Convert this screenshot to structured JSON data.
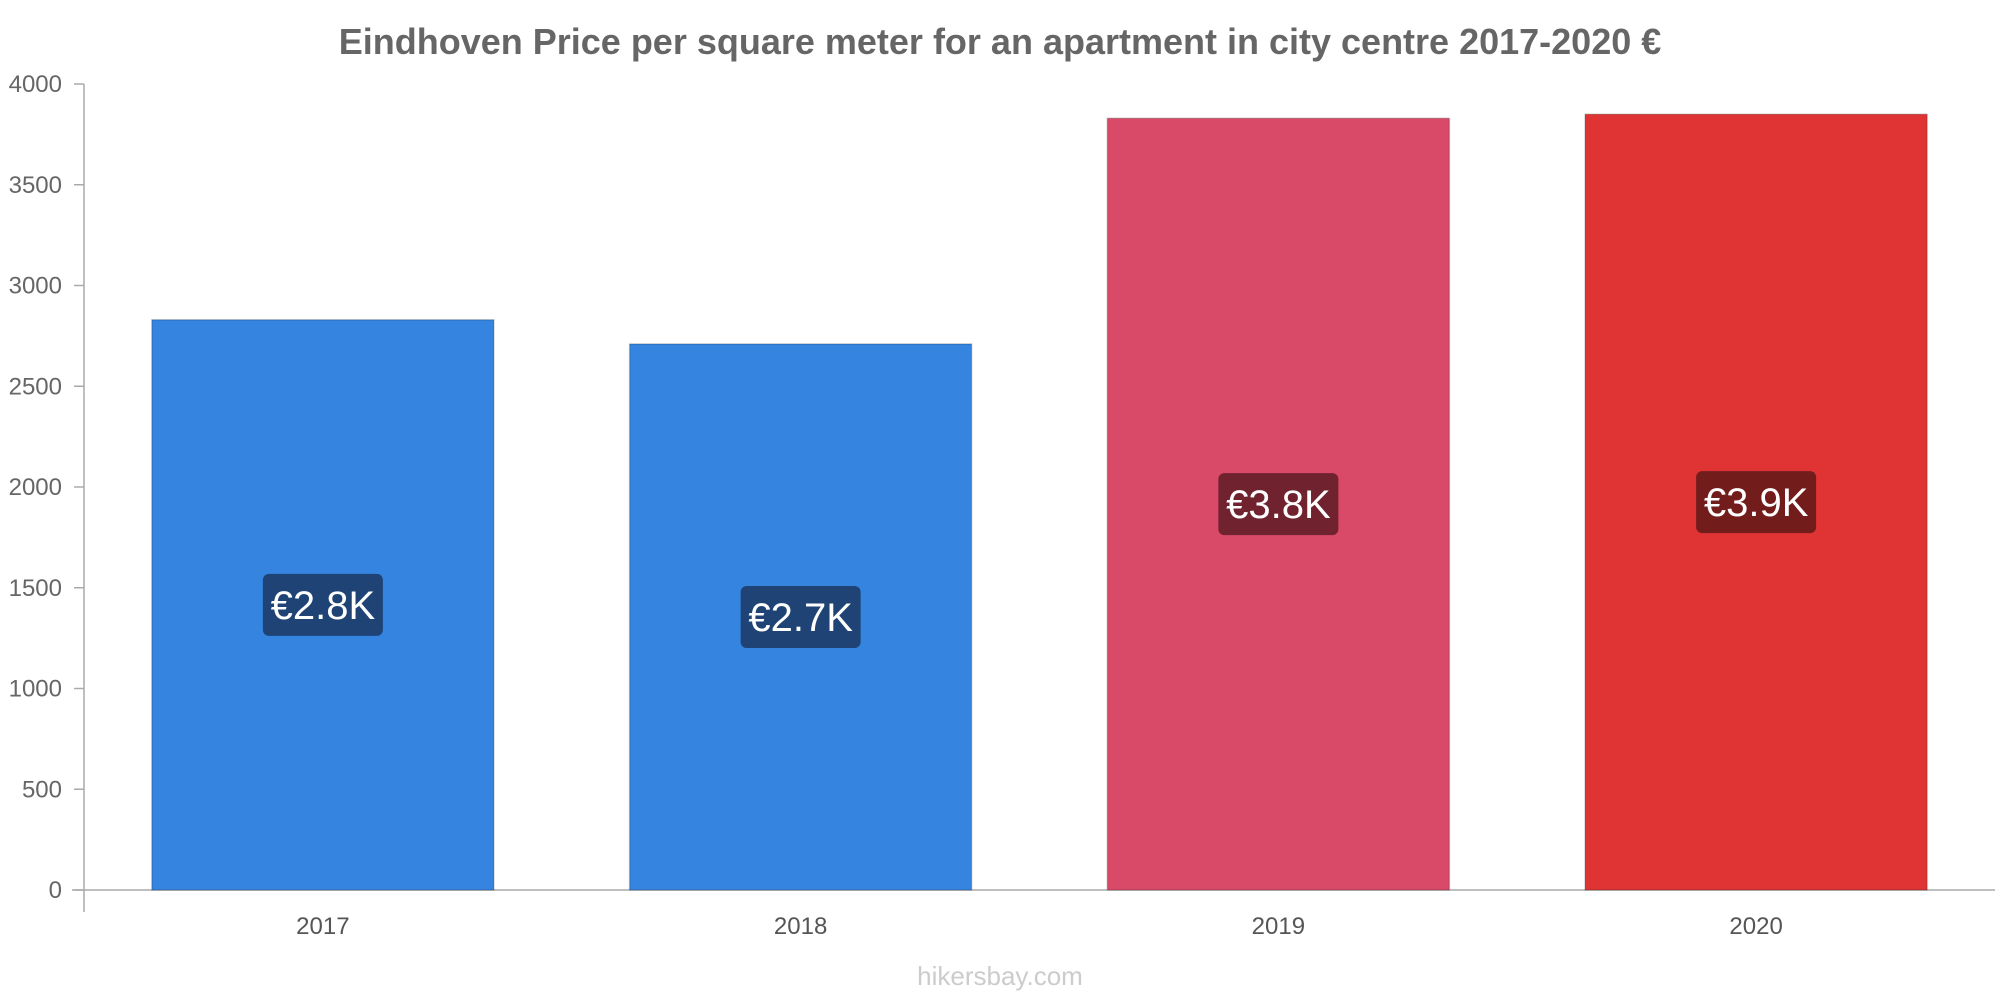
{
  "chart_data": {
    "type": "bar",
    "title": "Eindhoven Price per square meter for an apartment in city centre 2017-2020 €",
    "categories": [
      "2017",
      "2018",
      "2019",
      "2020"
    ],
    "values": [
      2830,
      2710,
      3830,
      3850
    ],
    "data_labels": [
      "€2.8K",
      "€2.7K",
      "€3.8K",
      "€3.9K"
    ],
    "colors": [
      "#3584e0",
      "#3584e0",
      "#d84a68",
      "#e03434"
    ],
    "label_bg_colors": [
      "#1e4374",
      "#1e4374",
      "#70222f",
      "#731c1c"
    ],
    "ylim": [
      0,
      4000
    ],
    "yticks": [
      "0",
      "500",
      "1000",
      "1500",
      "2000",
      "2500",
      "3000",
      "3500",
      "4000"
    ],
    "xlabel": "",
    "ylabel": "",
    "grid": false,
    "legend": "none"
  },
  "footer": {
    "credit": "hikersbay.com"
  }
}
